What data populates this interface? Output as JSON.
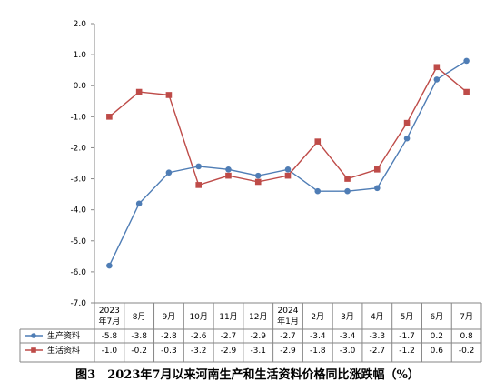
{
  "caption": "图3　2023年7月以来河南生产和生活资料价格同比涨跌幅（%）",
  "chart_data": {
    "type": "line",
    "title": "",
    "categories": [
      [
        "2023",
        "年7月"
      ],
      [
        "8月"
      ],
      [
        "9月"
      ],
      [
        "10月"
      ],
      [
        "11月"
      ],
      [
        "12月"
      ],
      [
        "2024",
        "年1月"
      ],
      [
        "2月"
      ],
      [
        "3月"
      ],
      [
        "4月"
      ],
      [
        "5月"
      ],
      [
        "6月"
      ],
      [
        "7月"
      ]
    ],
    "ylim": [
      -7.0,
      2.0
    ],
    "yticks": [
      2.0,
      1.0,
      0.0,
      -1.0,
      -2.0,
      -3.0,
      -4.0,
      -5.0,
      -6.0,
      -7.0
    ],
    "ytick_labels": [
      "2.0",
      "1.0",
      "0.0",
      "-1.0",
      "-2.0",
      "-3.0",
      "-4.0",
      "-5.0",
      "-6.0",
      "-7.0"
    ],
    "grid": false,
    "legend": "data-table",
    "series": [
      {
        "name": "生产资料",
        "color": "#4f7db5",
        "marker": "circle",
        "values": [
          -5.8,
          -3.8,
          -2.8,
          -2.6,
          -2.7,
          -2.9,
          -2.7,
          -3.4,
          -3.4,
          -3.3,
          -1.7,
          0.2,
          0.8
        ],
        "value_labels": [
          "-5.8",
          "-3.8",
          "-2.8",
          "-2.6",
          "-2.7",
          "-2.9",
          "-2.7",
          "-3.4",
          "-3.4",
          "-3.3",
          "-1.7",
          "0.2",
          "0.8"
        ]
      },
      {
        "name": "生活资料",
        "color": "#be4b48",
        "marker": "square",
        "values": [
          -1.0,
          -0.2,
          -0.3,
          -3.2,
          -2.9,
          -3.1,
          -2.9,
          -1.8,
          -3.0,
          -2.7,
          -1.2,
          0.6,
          -0.2
        ],
        "value_labels": [
          "-1.0",
          "-0.2",
          "-0.3",
          "-3.2",
          "-2.9",
          "-3.1",
          "-2.9",
          "-1.8",
          "-3.0",
          "-2.7",
          "-1.2",
          "0.6",
          "-0.2"
        ]
      }
    ]
  }
}
